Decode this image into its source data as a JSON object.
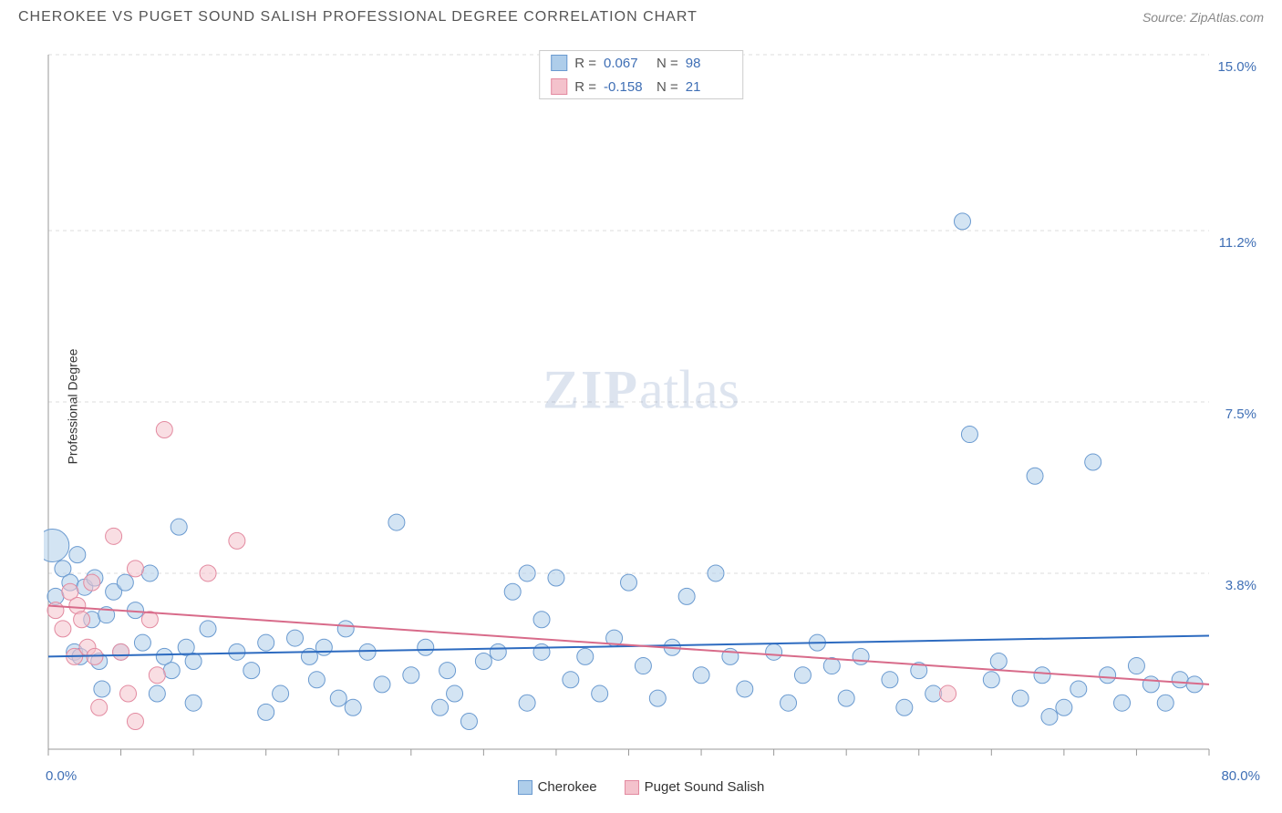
{
  "title": "CHEROKEE VS PUGET SOUND SALISH PROFESSIONAL DEGREE CORRELATION CHART",
  "source": "Source: ZipAtlas.com",
  "y_axis_label": "Professional Degree",
  "watermark_bold": "ZIP",
  "watermark_light": "atlas",
  "chart": {
    "type": "scatter",
    "xlim": [
      0,
      80
    ],
    "ylim": [
      0,
      15
    ],
    "x_ticks": [
      0,
      5,
      10,
      15,
      20,
      25,
      30,
      35,
      40,
      45,
      50,
      55,
      60,
      65,
      70,
      75,
      80
    ],
    "y_gridlines": [
      3.8,
      7.5,
      11.2,
      15.0
    ],
    "y_grid_labels": [
      "3.8%",
      "7.5%",
      "11.2%",
      "15.0%"
    ],
    "x_min_label": "0.0%",
    "x_max_label": "80.0%",
    "background_color": "#ffffff",
    "grid_color": "#dddddd",
    "axis_color": "#999999",
    "label_color": "#3f6fb5",
    "series": [
      {
        "name": "Cherokee",
        "fill": "#aecdea",
        "stroke": "#6a9ad0",
        "fill_opacity": 0.55,
        "marker_r": 9,
        "R": "0.067",
        "N": "98",
        "trend": {
          "x1": 0,
          "y1": 2.0,
          "x2": 80,
          "y2": 2.45,
          "stroke": "#2d6bc0",
          "width": 2
        },
        "points": [
          [
            0.3,
            4.4,
            18
          ],
          [
            0.5,
            3.3
          ],
          [
            1,
            3.9
          ],
          [
            1.5,
            3.6
          ],
          [
            1.8,
            2.1
          ],
          [
            2,
            4.2
          ],
          [
            2.2,
            2.0
          ],
          [
            2.5,
            3.5
          ],
          [
            3,
            2.8
          ],
          [
            3.2,
            3.7
          ],
          [
            3.5,
            1.9
          ],
          [
            3.7,
            1.3
          ],
          [
            4,
            2.9
          ],
          [
            4.5,
            3.4
          ],
          [
            5,
            2.1
          ],
          [
            5.3,
            3.6
          ],
          [
            6,
            3.0
          ],
          [
            6.5,
            2.3
          ],
          [
            7,
            3.8
          ],
          [
            7.5,
            1.2
          ],
          [
            8,
            2.0
          ],
          [
            8.5,
            1.7
          ],
          [
            9,
            4.8
          ],
          [
            9.5,
            2.2
          ],
          [
            10,
            1.9
          ],
          [
            10,
            1.0
          ],
          [
            11,
            2.6
          ],
          [
            13,
            2.1
          ],
          [
            14,
            1.7
          ],
          [
            15,
            2.3
          ],
          [
            15,
            0.8
          ],
          [
            16,
            1.2
          ],
          [
            17,
            2.4
          ],
          [
            18,
            2.0
          ],
          [
            18.5,
            1.5
          ],
          [
            19,
            2.2
          ],
          [
            20,
            1.1
          ],
          [
            20.5,
            2.6
          ],
          [
            21,
            0.9
          ],
          [
            22,
            2.1
          ],
          [
            23,
            1.4
          ],
          [
            24,
            4.9
          ],
          [
            25,
            1.6
          ],
          [
            26,
            2.2
          ],
          [
            27,
            0.9
          ],
          [
            27.5,
            1.7
          ],
          [
            28,
            1.2
          ],
          [
            29,
            0.6
          ],
          [
            30,
            1.9
          ],
          [
            31,
            2.1
          ],
          [
            32,
            3.4
          ],
          [
            33,
            1.0
          ],
          [
            33,
            3.8
          ],
          [
            34,
            2.1
          ],
          [
            34,
            2.8
          ],
          [
            35,
            3.7
          ],
          [
            36,
            1.5
          ],
          [
            37,
            2.0
          ],
          [
            38,
            1.2
          ],
          [
            39,
            2.4
          ],
          [
            40,
            3.6
          ],
          [
            41,
            1.8
          ],
          [
            42,
            1.1
          ],
          [
            43,
            2.2
          ],
          [
            44,
            3.3
          ],
          [
            45,
            1.6
          ],
          [
            46,
            3.8
          ],
          [
            47,
            2.0
          ],
          [
            48,
            1.3
          ],
          [
            50,
            2.1
          ],
          [
            51,
            1.0
          ],
          [
            52,
            1.6
          ],
          [
            53,
            2.3
          ],
          [
            54,
            1.8
          ],
          [
            55,
            1.1
          ],
          [
            56,
            2.0
          ],
          [
            58,
            1.5
          ],
          [
            59,
            0.9
          ],
          [
            60,
            1.7
          ],
          [
            61,
            1.2
          ],
          [
            63,
            11.4
          ],
          [
            63.5,
            6.8
          ],
          [
            65,
            1.5
          ],
          [
            65.5,
            1.9
          ],
          [
            67,
            1.1
          ],
          [
            68,
            5.9
          ],
          [
            68.5,
            1.6
          ],
          [
            69,
            0.7
          ],
          [
            70,
            0.9
          ],
          [
            71,
            1.3
          ],
          [
            72,
            6.2
          ],
          [
            73,
            1.6
          ],
          [
            74,
            1.0
          ],
          [
            75,
            1.8
          ],
          [
            76,
            1.4
          ],
          [
            77,
            1.0
          ],
          [
            78,
            1.5
          ],
          [
            79,
            1.4
          ]
        ]
      },
      {
        "name": "Puget Sound Salish",
        "fill": "#f4c2cc",
        "stroke": "#e38aa0",
        "fill_opacity": 0.55,
        "marker_r": 9,
        "R": "-0.158",
        "N": "21",
        "trend": {
          "x1": 0,
          "y1": 3.1,
          "x2": 80,
          "y2": 1.4,
          "stroke": "#d86b8a",
          "width": 2
        },
        "points": [
          [
            0.5,
            3.0
          ],
          [
            1,
            2.6
          ],
          [
            1.5,
            3.4
          ],
          [
            1.8,
            2.0
          ],
          [
            2,
            3.1
          ],
          [
            2.3,
            2.8
          ],
          [
            2.7,
            2.2
          ],
          [
            3,
            3.6
          ],
          [
            3.2,
            2.0
          ],
          [
            3.5,
            0.9
          ],
          [
            4.5,
            4.6
          ],
          [
            5,
            2.1
          ],
          [
            5.5,
            1.2
          ],
          [
            6,
            3.9
          ],
          [
            6,
            0.6
          ],
          [
            7,
            2.8
          ],
          [
            7.5,
            1.6
          ],
          [
            8,
            6.9
          ],
          [
            11,
            3.8
          ],
          [
            13,
            4.5
          ],
          [
            62,
            1.2
          ]
        ]
      }
    ]
  },
  "stats_legend": {
    "r_label": "R =",
    "n_label": "N ="
  },
  "footer": {
    "series1": "Cherokee",
    "series2": "Puget Sound Salish"
  }
}
